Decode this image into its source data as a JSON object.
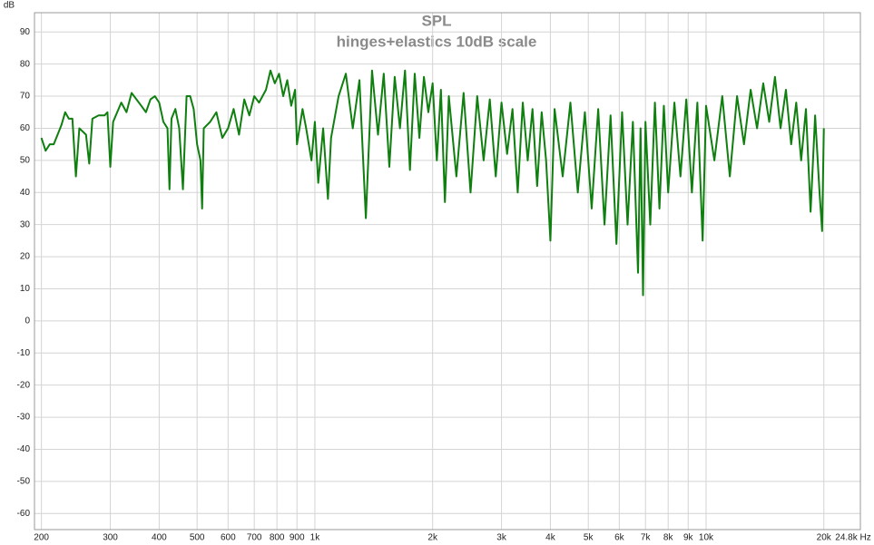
{
  "chart_data": {
    "type": "line",
    "title": "SPL",
    "subtitle": "hinges+elastics 10dB scale",
    "y_label": "dB",
    "log_x": true,
    "grid": true,
    "xlim": [
      192,
      24800
    ],
    "ylim": [
      -65,
      96
    ],
    "xticks": [
      200,
      300,
      400,
      500,
      600,
      700,
      800,
      900,
      {
        "value": 1000,
        "label": "1k"
      },
      {
        "value": 2000,
        "label": "2k"
      },
      {
        "value": 3000,
        "label": "3k"
      },
      {
        "value": 4000,
        "label": "4k"
      },
      {
        "value": 5000,
        "label": "5k"
      },
      {
        "value": 6000,
        "label": "6k"
      },
      {
        "value": 7000,
        "label": "7k"
      },
      {
        "value": 8000,
        "label": "8k"
      },
      {
        "value": 9000,
        "label": "9k"
      },
      {
        "value": 10000,
        "label": "10k"
      },
      {
        "value": 20000,
        "label": "20k"
      },
      {
        "value": 24800,
        "label": "24.8k Hz"
      }
    ],
    "yticks": [
      90,
      80,
      70,
      60,
      50,
      40,
      30,
      20,
      10,
      0,
      -10,
      -20,
      -30,
      -40,
      -50,
      -60
    ],
    "x": [
      200,
      205,
      210,
      215,
      220,
      225,
      230,
      235,
      240,
      245,
      250,
      260,
      265,
      270,
      280,
      290,
      295,
      300,
      305,
      320,
      330,
      340,
      350,
      360,
      370,
      380,
      390,
      400,
      410,
      420,
      425,
      430,
      440,
      450,
      460,
      470,
      480,
      490,
      500,
      510,
      515,
      520,
      540,
      560,
      580,
      600,
      620,
      640,
      660,
      680,
      700,
      720,
      750,
      770,
      790,
      810,
      830,
      850,
      870,
      890,
      900,
      930,
      950,
      980,
      1000,
      1020,
      1050,
      1080,
      1100,
      1150,
      1200,
      1250,
      1300,
      1350,
      1400,
      1450,
      1500,
      1550,
      1600,
      1650,
      1700,
      1750,
      1800,
      1850,
      1900,
      1950,
      2000,
      2050,
      2100,
      2150,
      2200,
      2300,
      2400,
      2500,
      2600,
      2700,
      2800,
      2900,
      3000,
      3100,
      3200,
      3300,
      3400,
      3500,
      3600,
      3700,
      3800,
      3900,
      4000,
      4100,
      4300,
      4500,
      4700,
      4900,
      5100,
      5300,
      5500,
      5700,
      5900,
      6100,
      6300,
      6500,
      6700,
      6800,
      6900,
      7000,
      7200,
      7400,
      7600,
      7800,
      8000,
      8300,
      8600,
      8900,
      9200,
      9500,
      9800,
      10000,
      10500,
      11000,
      11500,
      12000,
      12500,
      13000,
      13500,
      14000,
      14500,
      15000,
      15500,
      16000,
      16500,
      17000,
      17500,
      18000,
      18500,
      19000,
      19500,
      19800,
      20000
    ],
    "series": [
      {
        "color": "#0f7f0f",
        "values": [
          57,
          53,
          55,
          55,
          58,
          61,
          65,
          63,
          63,
          45,
          60,
          58,
          49,
          63,
          64,
          64,
          65,
          48,
          62,
          68,
          65,
          71,
          69,
          67,
          65,
          69,
          70,
          68,
          62,
          60,
          41,
          63,
          66,
          60,
          41,
          70,
          70,
          66,
          55,
          50,
          35,
          60,
          62,
          65,
          57,
          60,
          66,
          58,
          69,
          64,
          70,
          68,
          72,
          78,
          74,
          77,
          70,
          75,
          67,
          72,
          55,
          66,
          60,
          50,
          62,
          43,
          60,
          38,
          57,
          70,
          77,
          60,
          75,
          32,
          78,
          58,
          77,
          48,
          76,
          60,
          78,
          47,
          77,
          57,
          76,
          65,
          74,
          50,
          72,
          37,
          70,
          45,
          71,
          40,
          70,
          50,
          69,
          45,
          68,
          52,
          66,
          40,
          68,
          50,
          66,
          42,
          65,
          50,
          25,
          66,
          45,
          68,
          40,
          65,
          35,
          66,
          30,
          64,
          24,
          65,
          30,
          62,
          15,
          60,
          8,
          62,
          30,
          68,
          35,
          67,
          40,
          68,
          45,
          69,
          40,
          68,
          25,
          67,
          50,
          70,
          45,
          70,
          55,
          72,
          60,
          74,
          62,
          76,
          60,
          72,
          55,
          68,
          50,
          66,
          34,
          64,
          40,
          28,
          60
        ]
      }
    ]
  }
}
